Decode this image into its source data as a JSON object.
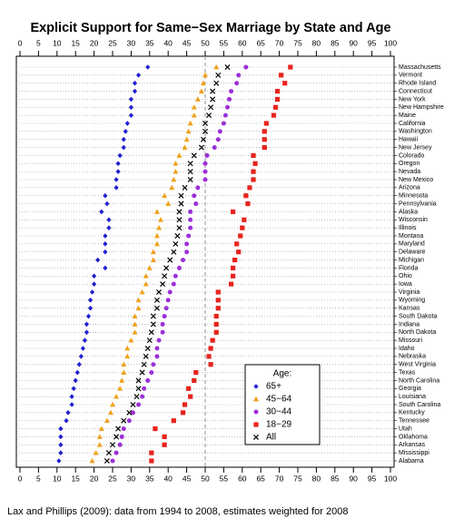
{
  "chart_data": {
    "type": "dotplot",
    "title": "Explicit Support for Same−Sex Marriage by State and Age",
    "caption": "Lax and Phillips (2009): data from 1994 to 2008, estimates weighted for 2008",
    "categories": [
      "Massachusetts",
      "Vermont",
      "Rhode Island",
      "Connecticut",
      "New York",
      "New Hampshire",
      "Maine",
      "California",
      "Washington",
      "Hawaii",
      "New Jersey",
      "Colorado",
      "Oregon",
      "Nevada",
      "New Mexico",
      "Arizona",
      "Minnesota",
      "Pennsylvania",
      "Alaska",
      "Wisconsin",
      "Illinois",
      "Montana",
      "Maryland",
      "Delaware",
      "Michigan",
      "Florida",
      "Ohio",
      "Iowa",
      "Virginia",
      "Wyoming",
      "Kansas",
      "South Dakota",
      "Indiana",
      "North Dakota",
      "Missouri",
      "Idaho",
      "Nebraska",
      "West Virginia",
      "Texas",
      "North Carolina",
      "Georgia",
      "Louisiana",
      "South Carolina",
      "Kentucky",
      "Tennessee",
      "Utah",
      "Oklahoma",
      "Arkansas",
      "Mississippi",
      "Alabama"
    ],
    "series": [
      {
        "name": "65+",
        "color": "#1f1fd0",
        "marker": "diamond",
        "values": [
          34.5,
          32,
          31,
          31,
          30,
          30,
          30,
          29,
          28.5,
          28,
          28,
          27,
          26.5,
          26.5,
          26,
          26,
          23,
          23.5,
          22,
          24,
          24,
          23,
          23,
          23,
          21,
          23,
          20,
          20,
          19.5,
          19,
          19,
          18.5,
          18,
          18,
          17.5,
          17,
          16.5,
          16,
          15.5,
          15,
          14.5,
          14,
          14,
          13,
          12.5,
          11,
          11,
          11,
          11,
          10.5
        ]
      },
      {
        "name": "45−64",
        "color": "#f0a21c",
        "marker": "triangle",
        "values": [
          53,
          50,
          49.5,
          49,
          48,
          47,
          47,
          46,
          45.5,
          45,
          44.5,
          43,
          42,
          42,
          41.5,
          41,
          39,
          40,
          37,
          38,
          37.5,
          37,
          37,
          36,
          36,
          35,
          34,
          34,
          33,
          32,
          32,
          31,
          31,
          31,
          30,
          29,
          29,
          28,
          28,
          27.5,
          27,
          26,
          25,
          24.5,
          23.5,
          22,
          21.5,
          21.5,
          20.5,
          19.5
        ]
      },
      {
        "name": "30−44",
        "color": "#9b2fd6",
        "marker": "circle",
        "values": [
          61,
          59,
          58.5,
          57,
          56.5,
          56,
          55.5,
          55,
          54,
          53.5,
          52.5,
          50.5,
          50,
          50,
          50,
          48,
          47,
          47.5,
          46,
          46,
          46,
          45.5,
          45,
          45,
          44,
          43,
          42,
          41.5,
          40.5,
          40,
          39.5,
          39,
          38.5,
          38.5,
          37.5,
          37,
          37,
          36,
          35.5,
          34.5,
          33.5,
          33,
          32,
          30.5,
          29.5,
          28,
          27.5,
          27,
          26,
          25
        ]
      },
      {
        "name": "18−29",
        "color": "#e8231c",
        "marker": "square",
        "values": [
          73,
          70.5,
          71.5,
          69.5,
          69.5,
          69,
          68.5,
          66.5,
          66,
          66,
          66,
          63,
          63.5,
          63,
          63,
          62,
          61,
          61.5,
          57.5,
          60.5,
          60,
          59.5,
          58.5,
          59,
          58,
          57.5,
          57.5,
          57,
          53.5,
          53.5,
          53.5,
          53,
          53,
          53,
          52,
          51.5,
          51,
          51.5,
          47.5,
          47,
          45.5,
          46,
          44.5,
          44,
          41.5,
          36.5,
          39,
          39,
          35.5,
          35.5
        ]
      },
      {
        "name": "All",
        "color": "#000000",
        "marker": "cross",
        "values": [
          56,
          53.5,
          53,
          52,
          52,
          51.5,
          51,
          50,
          50,
          49.5,
          49,
          47,
          46,
          46,
          46,
          44.5,
          43.5,
          43.5,
          43,
          43,
          43,
          42.5,
          42,
          41.5,
          40.5,
          39.5,
          39,
          38.5,
          37.5,
          37,
          37,
          36,
          36,
          35.5,
          35,
          34.5,
          34,
          33.5,
          33,
          32,
          32,
          31.5,
          30.5,
          29.5,
          28,
          26.5,
          26,
          25,
          24,
          23.5
        ]
      }
    ],
    "xlim": [
      0,
      100
    ],
    "xticks": [
      0,
      5,
      10,
      15,
      20,
      25,
      30,
      35,
      40,
      45,
      50,
      55,
      60,
      65,
      70,
      75,
      80,
      85,
      90,
      95,
      100
    ],
    "reference_line": 50,
    "grid": true,
    "legend_title": "Age:",
    "legend_position": "lower-center"
  }
}
